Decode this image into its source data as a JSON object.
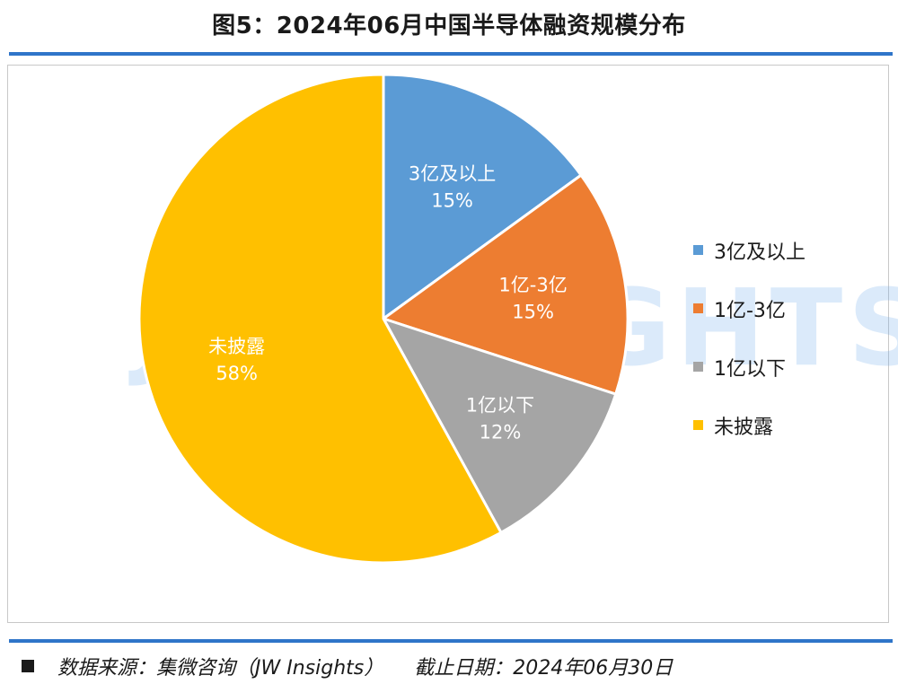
{
  "title": "图5：2024年06月中国半导体融资规模分布",
  "watermark": "JIIHNSIGHTS",
  "footer": {
    "source": "数据来源：集微咨询（JW Insights）",
    "cutoff": "截止日期：2024年06月30日"
  },
  "chart_data": {
    "type": "pie",
    "title": "",
    "slices": [
      {
        "label": "3亿及以上",
        "value": 15,
        "pct_label": "15%",
        "color": "#5b9bd5"
      },
      {
        "label": "1亿-3亿",
        "value": 15,
        "pct_label": "15%",
        "color": "#ed7d31"
      },
      {
        "label": "1亿以下",
        "value": 12,
        "pct_label": "12%",
        "color": "#a5a5a5"
      },
      {
        "label": "未披露",
        "value": 58,
        "pct_label": "58%",
        "color": "#ffc000"
      }
    ],
    "legend_position": "right"
  }
}
